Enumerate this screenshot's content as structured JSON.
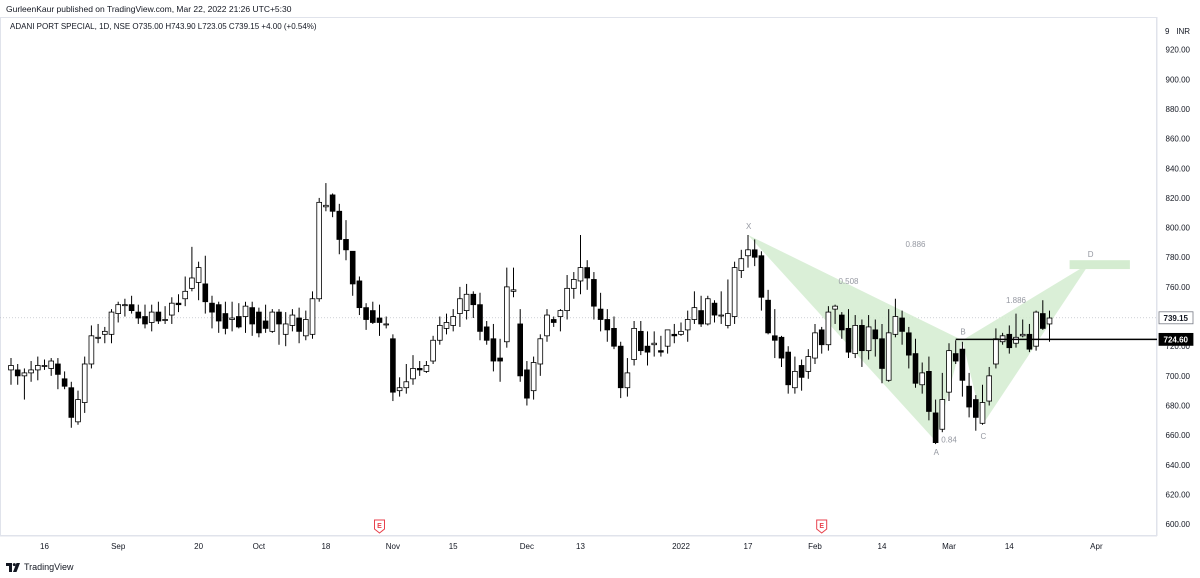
{
  "header": {
    "published": "GurleenKaur published on TradingView.com, Mar 22, 2022 21:26 UTC+5:30",
    "symbol_line": "ADANI PORT SPECIAL, 1D, NSE  O735.00  H743.90  L723.05  C739.15  +4.00 (+0.54%)"
  },
  "footer": {
    "brand": "TradingView",
    "logo_icon": "tradingview-logo-icon"
  },
  "colors": {
    "up": "#ffffff",
    "down": "#000000",
    "pattern_fill": "#d4ecd0",
    "line": "#000000"
  },
  "chart_data": {
    "type": "candlestick",
    "currency": "INR",
    "ylim": [
      592,
      942
    ],
    "y_ticks": [
      600,
      620,
      640,
      660,
      680,
      700,
      720,
      740,
      760,
      780,
      800,
      820,
      840,
      860,
      880,
      900,
      920
    ],
    "y_tick_labels": [
      "600.00",
      "620.00",
      "640.00",
      "660.00",
      "680.00",
      "700.00",
      "720.00",
      "740.00",
      "760.00",
      "780.00",
      "800.00",
      "820.00",
      "840.00",
      "860.00",
      "880.00",
      "900.00",
      "920.00"
    ],
    "top_tick": "9",
    "x_ticks": [
      {
        "bar": 5,
        "label": "16"
      },
      {
        "bar": 16,
        "label": "Sep"
      },
      {
        "bar": 28,
        "label": "20"
      },
      {
        "bar": 37,
        "label": "Oct"
      },
      {
        "bar": 47,
        "label": "18"
      },
      {
        "bar": 57,
        "label": "Nov"
      },
      {
        "bar": 66,
        "label": "15"
      },
      {
        "bar": 77,
        "label": "Dec"
      },
      {
        "bar": 85,
        "label": "13"
      },
      {
        "bar": 100,
        "label": "2022"
      },
      {
        "bar": 110,
        "label": "17"
      },
      {
        "bar": 120,
        "label": "Feb"
      },
      {
        "bar": 130,
        "label": "14"
      },
      {
        "bar": 140,
        "label": "Mar"
      },
      {
        "bar": 149,
        "label": "14"
      },
      {
        "bar": 162,
        "label": "Apr"
      }
    ],
    "earnings_markers": [
      {
        "bar": 55,
        "label": "E"
      },
      {
        "bar": 121,
        "label": "E"
      }
    ],
    "current_price": {
      "value": 739.15,
      "label": "739.15"
    },
    "level_line": {
      "value": 724.6,
      "label": "724.60",
      "from_bar": 141
    },
    "harmonic_pattern": {
      "points": [
        {
          "name": "X",
          "bar": 110,
          "price": 795
        },
        {
          "name": "A",
          "bar": 138,
          "price": 656
        },
        {
          "name": "B",
          "bar": 142,
          "price": 724
        },
        {
          "name": "C",
          "bar": 145,
          "price": 667
        },
        {
          "name": "D",
          "bar": 161,
          "price": 776
        }
      ],
      "ratios": [
        {
          "text": "0.508",
          "bar": 125,
          "price": 762
        },
        {
          "text": "0.886",
          "bar": 135,
          "price": 787
        },
        {
          "text": "0.84",
          "bar": 140,
          "price": 655
        },
        {
          "text": "1.886",
          "bar": 150,
          "price": 749
        }
      ],
      "target_zone": {
        "from_bar": 158,
        "to_bar": 167,
        "top": 778,
        "bottom": 772
      }
    },
    "candles": [
      [
        0,
        704,
        707,
        694,
        712
      ],
      [
        1,
        704,
        700,
        694,
        708
      ],
      [
        2,
        700,
        702,
        684,
        705
      ],
      [
        3,
        702,
        704,
        696,
        710
      ],
      [
        4,
        704,
        707,
        697,
        713
      ],
      [
        5,
        707,
        707,
        704,
        711
      ],
      [
        6,
        705,
        710,
        700,
        712
      ],
      [
        7,
        708,
        701,
        691,
        712
      ],
      [
        8,
        698,
        693,
        691,
        703
      ],
      [
        9,
        692,
        672,
        665,
        696
      ],
      [
        10,
        669,
        684,
        667,
        690
      ],
      [
        11,
        682,
        708,
        675,
        713
      ],
      [
        12,
        708,
        727,
        705,
        734
      ],
      [
        13,
        726,
        726,
        722,
        735
      ],
      [
        14,
        728,
        730,
        722,
        733
      ],
      [
        15,
        728,
        743,
        722,
        745
      ],
      [
        16,
        742,
        748,
        736,
        750
      ],
      [
        17,
        748,
        748,
        740,
        752
      ],
      [
        18,
        748,
        744,
        742,
        754
      ],
      [
        19,
        743,
        739,
        735,
        748
      ],
      [
        20,
        740,
        735,
        732,
        748
      ],
      [
        21,
        736,
        743,
        730,
        748
      ],
      [
        22,
        743,
        737,
        735,
        750
      ],
      [
        23,
        738,
        738,
        735,
        747
      ],
      [
        24,
        741,
        749,
        735,
        753
      ],
      [
        25,
        749,
        748,
        743,
        755
      ],
      [
        26,
        752,
        757,
        747,
        767
      ],
      [
        27,
        759,
        766,
        757,
        787
      ],
      [
        28,
        763,
        773,
        751,
        777
      ],
      [
        29,
        762,
        750,
        742,
        781
      ],
      [
        30,
        749,
        743,
        732,
        754
      ],
      [
        31,
        748,
        737,
        729,
        750
      ],
      [
        32,
        742,
        732,
        728,
        750
      ],
      [
        33,
        738,
        739,
        730,
        750
      ],
      [
        34,
        740,
        733,
        732,
        749
      ],
      [
        35,
        740,
        747,
        729,
        750
      ],
      [
        36,
        746,
        735,
        727,
        750
      ],
      [
        37,
        743,
        729,
        726,
        746
      ],
      [
        38,
        737,
        732,
        729,
        748
      ],
      [
        39,
        730,
        743,
        729,
        745
      ],
      [
        40,
        743,
        735,
        721,
        745
      ],
      [
        41,
        728,
        735,
        720,
        743
      ],
      [
        42,
        734,
        741,
        730,
        745
      ],
      [
        43,
        739,
        730,
        722,
        746
      ],
      [
        44,
        727,
        738,
        724,
        744
      ],
      [
        45,
        728,
        752,
        725,
        757
      ],
      [
        46,
        752,
        817,
        750,
        820
      ],
      [
        47,
        814,
        815,
        811,
        830
      ],
      [
        48,
        822,
        811,
        807,
        823
      ],
      [
        49,
        811,
        792,
        782,
        816
      ],
      [
        50,
        792,
        785,
        778,
        805
      ],
      [
        51,
        784,
        762,
        754,
        782
      ],
      [
        52,
        764,
        746,
        741,
        767
      ],
      [
        53,
        746,
        738,
        731,
        749
      ],
      [
        54,
        744,
        736,
        735,
        750
      ],
      [
        55,
        739,
        736,
        727,
        748
      ],
      [
        56,
        735,
        735,
        732,
        740
      ],
      [
        57,
        725,
        689,
        683,
        728
      ],
      [
        58,
        690,
        692,
        686,
        699
      ],
      [
        59,
        692,
        696,
        688,
        708
      ],
      [
        60,
        698,
        705,
        694,
        714
      ],
      [
        61,
        705,
        704,
        700,
        710
      ],
      [
        62,
        703,
        707,
        702,
        710
      ],
      [
        63,
        710,
        724,
        708,
        727
      ],
      [
        64,
        724,
        734,
        721,
        740
      ],
      [
        65,
        732,
        736,
        728,
        742
      ],
      [
        66,
        734,
        740,
        730,
        745
      ],
      [
        67,
        742,
        752,
        733,
        760
      ],
      [
        68,
        744,
        755,
        738,
        762
      ],
      [
        69,
        755,
        748,
        739,
        757
      ],
      [
        70,
        748,
        730,
        724,
        756
      ],
      [
        71,
        733,
        724,
        721,
        737
      ],
      [
        72,
        725,
        710,
        703,
        735
      ],
      [
        73,
        712,
        710,
        696,
        725
      ],
      [
        74,
        723,
        760,
        719,
        773
      ],
      [
        75,
        757,
        758,
        753,
        773
      ],
      [
        76,
        735,
        700,
        696,
        745
      ],
      [
        77,
        704,
        685,
        680,
        710
      ],
      [
        78,
        690,
        709,
        684,
        713
      ],
      [
        79,
        708,
        725,
        700,
        728
      ],
      [
        80,
        727,
        741,
        723,
        745
      ],
      [
        81,
        738,
        736,
        733,
        740
      ],
      [
        82,
        740,
        744,
        730,
        745
      ],
      [
        83,
        744,
        759,
        738,
        768
      ],
      [
        84,
        759,
        765,
        752,
        770
      ],
      [
        85,
        764,
        773,
        755,
        795
      ],
      [
        86,
        773,
        766,
        758,
        778
      ],
      [
        87,
        765,
        747,
        738,
        770
      ],
      [
        88,
        745,
        738,
        730,
        756
      ],
      [
        89,
        738,
        731,
        723,
        745
      ],
      [
        90,
        732,
        720,
        718,
        740
      ],
      [
        91,
        720,
        692,
        685,
        723
      ],
      [
        92,
        692,
        702,
        686,
        712
      ],
      [
        93,
        711,
        732,
        707,
        737
      ],
      [
        94,
        730,
        717,
        714,
        737
      ],
      [
        95,
        720,
        716,
        707,
        730
      ],
      [
        96,
        721,
        722,
        713,
        730
      ],
      [
        97,
        717,
        716,
        713,
        727
      ],
      [
        98,
        720,
        731,
        715,
        731
      ],
      [
        99,
        728,
        727,
        722,
        735
      ],
      [
        100,
        728,
        730,
        727,
        736
      ],
      [
        101,
        731,
        738,
        723,
        744
      ],
      [
        102,
        738,
        746,
        735,
        757
      ],
      [
        103,
        744,
        735,
        733,
        754
      ],
      [
        104,
        735,
        752,
        734,
        754
      ],
      [
        105,
        749,
        741,
        736,
        751
      ],
      [
        106,
        741,
        741,
        735,
        757
      ],
      [
        107,
        734,
        742,
        732,
        765
      ],
      [
        108,
        740,
        773,
        735,
        777
      ],
      [
        109,
        771,
        779,
        766,
        785
      ],
      [
        110,
        781,
        785,
        773,
        795
      ],
      [
        111,
        785,
        780,
        774,
        792
      ],
      [
        112,
        781,
        753,
        744,
        784
      ],
      [
        113,
        751,
        729,
        728,
        758
      ],
      [
        114,
        727,
        724,
        712,
        745
      ],
      [
        115,
        726,
        712,
        706,
        727
      ],
      [
        116,
        716,
        694,
        688,
        720
      ],
      [
        117,
        692,
        703,
        688,
        713
      ],
      [
        118,
        707,
        699,
        690,
        711
      ],
      [
        119,
        703,
        713,
        698,
        718
      ],
      [
        120,
        712,
        729,
        708,
        735
      ],
      [
        121,
        731,
        721,
        715,
        733
      ],
      [
        122,
        721,
        743,
        717,
        747
      ],
      [
        123,
        745,
        747,
        735,
        748
      ],
      [
        124,
        741,
        731,
        725,
        743
      ],
      [
        125,
        732,
        716,
        712,
        745
      ],
      [
        126,
        715,
        734,
        712,
        741
      ],
      [
        127,
        734,
        717,
        706,
        738
      ],
      [
        128,
        717,
        733,
        711,
        741
      ],
      [
        129,
        731,
        725,
        713,
        738
      ],
      [
        130,
        725,
        705,
        695,
        735
      ],
      [
        131,
        697,
        729,
        696,
        745
      ],
      [
        132,
        728,
        740,
        726,
        752
      ],
      [
        133,
        739,
        730,
        721,
        744
      ],
      [
        134,
        729,
        714,
        705,
        733
      ],
      [
        135,
        715,
        695,
        692,
        725
      ],
      [
        136,
        694,
        702,
        688,
        709
      ],
      [
        137,
        703,
        676,
        670,
        713
      ],
      [
        138,
        675,
        655,
        654,
        684
      ],
      [
        139,
        664,
        684,
        662,
        702
      ],
      [
        140,
        689,
        717,
        683,
        722
      ],
      [
        141,
        715,
        710,
        708,
        724
      ],
      [
        142,
        718,
        697,
        686,
        723
      ],
      [
        143,
        693,
        679,
        672,
        702
      ],
      [
        144,
        684,
        672,
        663,
        687
      ],
      [
        145,
        668,
        682,
        667,
        694
      ],
      [
        146,
        683,
        700,
        680,
        706
      ],
      [
        147,
        708,
        725,
        705,
        732
      ],
      [
        148,
        723,
        727,
        721,
        729
      ],
      [
        149,
        728,
        719,
        715,
        734
      ],
      [
        150,
        722,
        726,
        719,
        742
      ],
      [
        151,
        727,
        728,
        726,
        738
      ],
      [
        152,
        728,
        718,
        716,
        735
      ],
      [
        153,
        720,
        743,
        717,
        744
      ],
      [
        154,
        742,
        732,
        731,
        751
      ],
      [
        155,
        735,
        739,
        723,
        744
      ]
    ]
  }
}
